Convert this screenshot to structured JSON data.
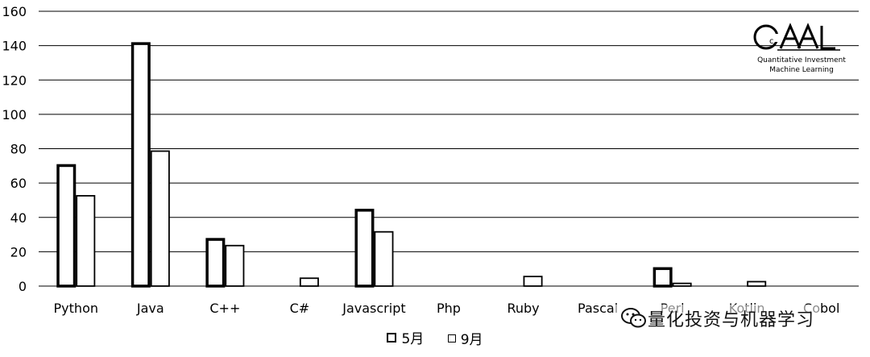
{
  "chart_data": {
    "type": "bar",
    "categories": [
      "Python",
      "Java",
      "C++",
      "C#",
      "Javascript",
      "Php",
      "Ruby",
      "Pascal",
      "Perl",
      "Kotlin",
      "Cobol"
    ],
    "series": [
      {
        "name": "5月",
        "values": [
          71,
          142,
          28,
          0,
          45,
          0.5,
          0,
          0,
          11,
          0.5,
          0
        ]
      },
      {
        "name": "9月",
        "values": [
          53,
          79,
          24,
          5,
          32,
          0,
          6,
          0,
          2,
          3,
          0
        ]
      }
    ],
    "ylim": [
      0,
      160
    ],
    "yticks": [
      0,
      20,
      40,
      60,
      80,
      100,
      120,
      140,
      160
    ],
    "grid": true,
    "legend_position": "bottom"
  },
  "logo": {
    "line1": "Quantitative Investment",
    "line2": "Machine Learning"
  },
  "watermark": {
    "text": "量化投资与机器学习"
  }
}
